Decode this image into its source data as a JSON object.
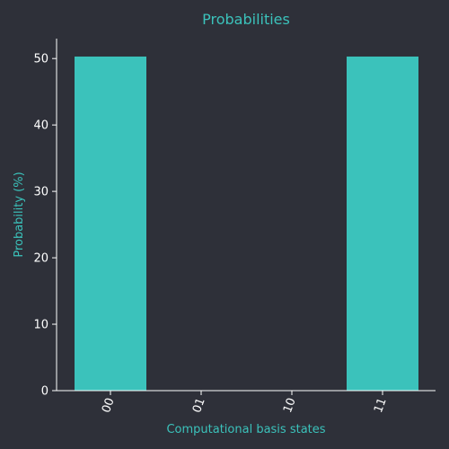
{
  "chart_data": {
    "type": "bar",
    "title": "Probabilities",
    "xlabel": "Computational basis states",
    "ylabel": "Probability (%)",
    "categories": [
      "00",
      "01",
      "10",
      "11"
    ],
    "values": [
      50.3,
      0,
      0,
      50.3
    ],
    "ylim": [
      0,
      53
    ],
    "yticks": [
      0,
      10,
      20,
      30,
      40,
      50
    ],
    "grid": false,
    "legend": "none",
    "x_tick_rotation": -70
  },
  "colors": {
    "background": "#2e3039",
    "bar": "#3bc2bb",
    "accent_text": "#3bc2bb",
    "axis": "#ffffff",
    "tick_text": "#ffffff"
  }
}
